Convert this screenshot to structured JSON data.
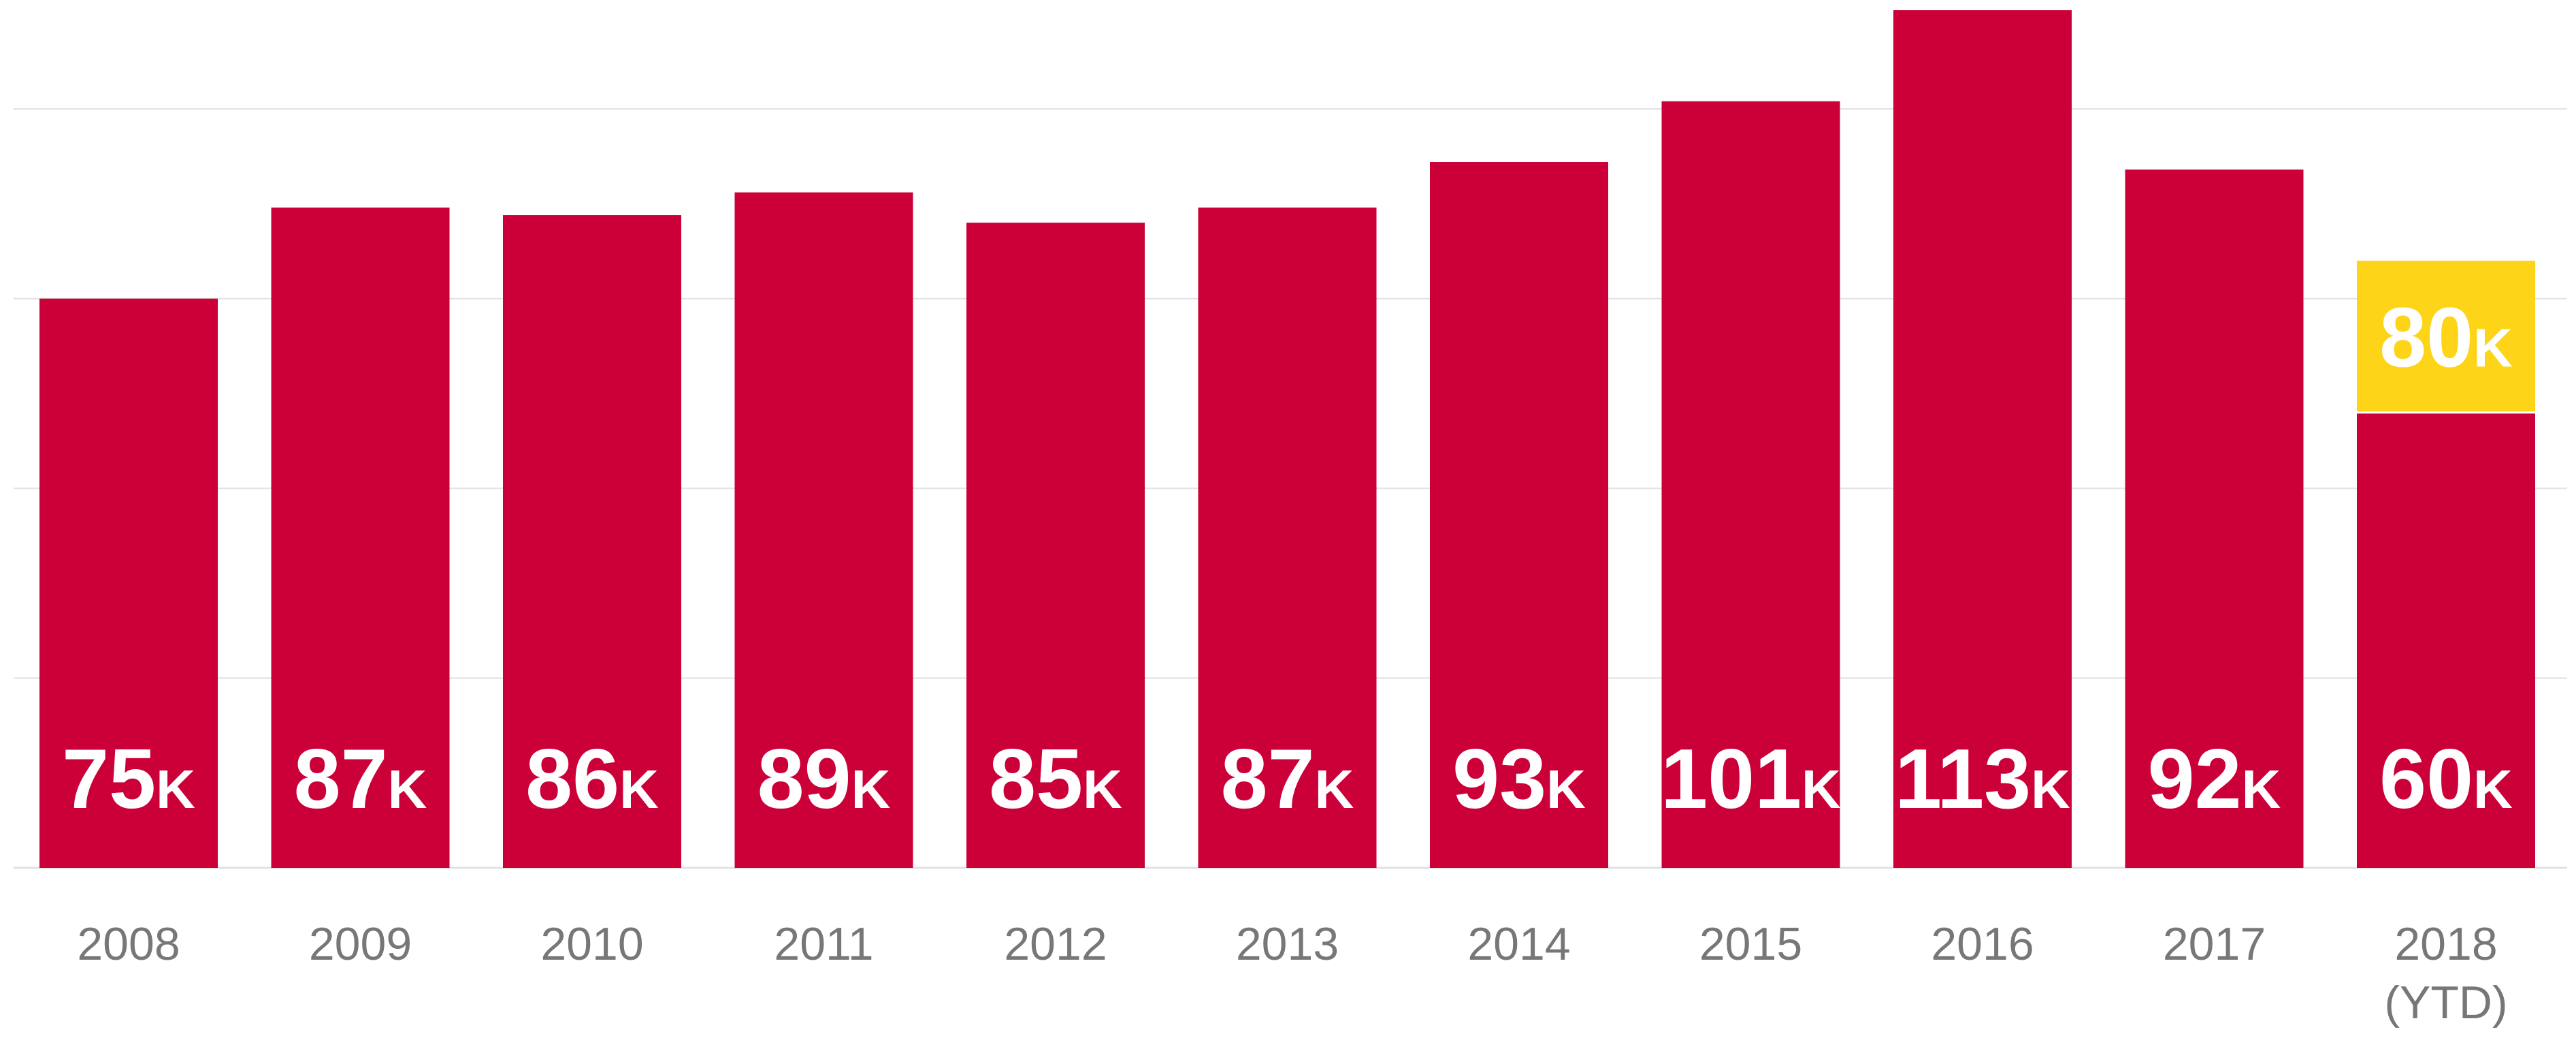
{
  "chart_data": {
    "type": "bar",
    "categories": [
      "2008",
      "2009",
      "2010",
      "2011",
      "2012",
      "2013",
      "2014",
      "2015",
      "2016",
      "2017",
      "2018\n(YTD)"
    ],
    "values": [
      75,
      87,
      86,
      89,
      85,
      87,
      93,
      101,
      113,
      92,
      60
    ],
    "labels": [
      "75K",
      "87K",
      "86K",
      "89K",
      "85K",
      "87K",
      "93K",
      "101K",
      "113K",
      "92K",
      "60K"
    ],
    "ytd_projection": {
      "category": "2018\n(YTD)",
      "value": 80,
      "label": "80K"
    },
    "ylim": [
      0,
      113
    ],
    "grid": true,
    "legend": "none",
    "colors": {
      "bar": "#CC0039",
      "projection": "#FDD418",
      "grid": "#E2E2E2",
      "axis": "#E2E2E2",
      "label": "#FFFFFF",
      "tick": "#777777"
    }
  }
}
